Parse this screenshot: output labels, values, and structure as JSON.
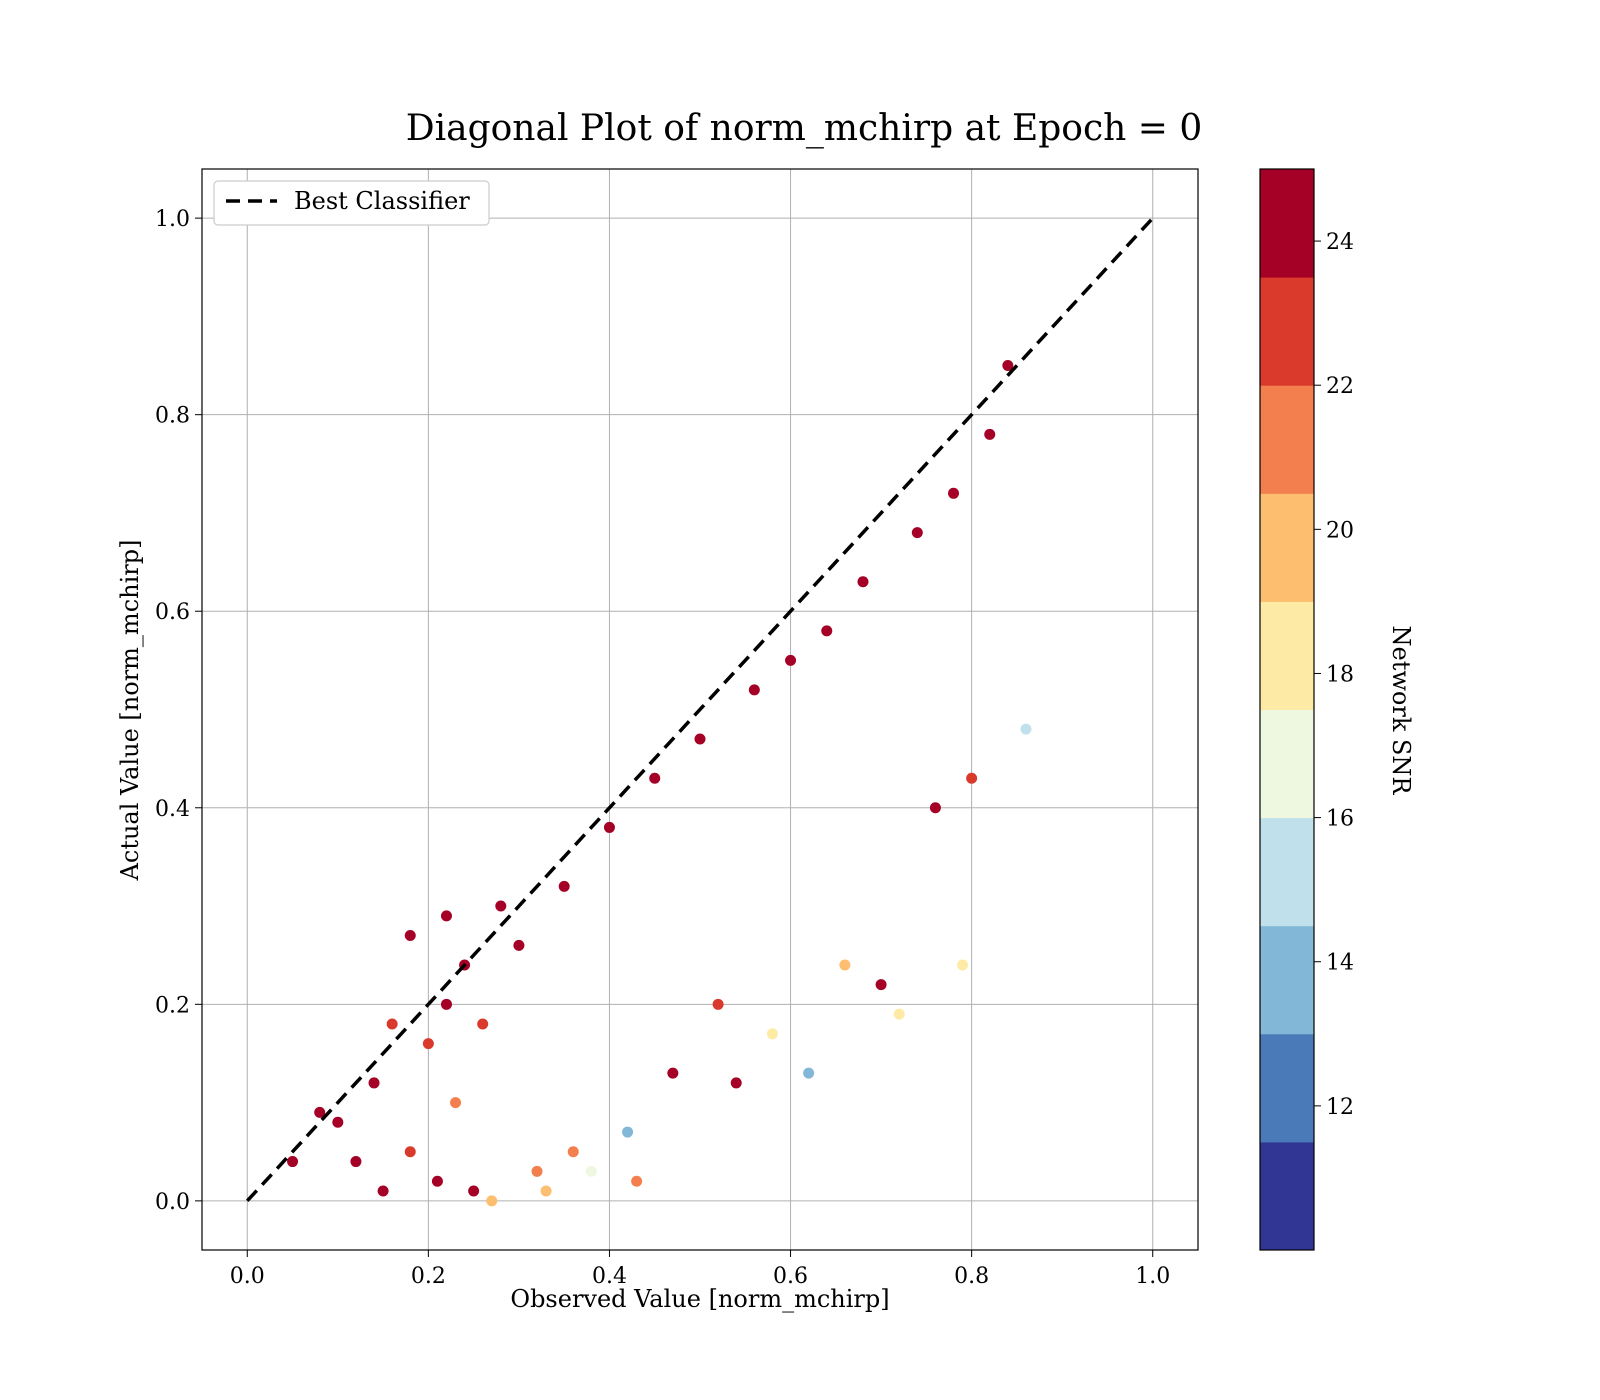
{
  "chart_data": {
    "type": "scatter",
    "title": "Diagonal Plot of norm_mchirp at Epoch = 0",
    "xlabel": "Observed Value [norm_mchirp]",
    "ylabel": "Actual Value [norm_mchirp]",
    "xlim": [
      -0.05,
      1.05
    ],
    "ylim": [
      -0.05,
      1.05
    ],
    "xticks": [
      "0.0",
      "0.2",
      "0.4",
      "0.6",
      "0.8",
      "1.0"
    ],
    "yticks": [
      "0.0",
      "0.2",
      "0.4",
      "0.6",
      "0.8",
      "1.0"
    ],
    "grid": true,
    "legend": {
      "position": "top-left",
      "entries": [
        {
          "label": "Best Classifier",
          "style": "dashed",
          "color": "#000000"
        }
      ]
    },
    "reference_line": {
      "name": "Best Classifier",
      "x": [
        0,
        1
      ],
      "y": [
        0,
        1
      ]
    },
    "colorbar": {
      "label": "Network SNR",
      "min": 10.0,
      "max": 25.0,
      "ticks": [
        "12",
        "14",
        "16",
        "18",
        "20",
        "22",
        "24"
      ],
      "colors": [
        "#313695",
        "#4575b4",
        "#74add1",
        "#abd9e9",
        "#e0f3f8",
        "#ffffbf",
        "#fee090",
        "#fdae61",
        "#f46d43",
        "#d73027",
        "#a50026"
      ],
      "band_colors": [
        "#313695",
        "#4a7ab7",
        "#83b7d7",
        "#c0e1ec",
        "#eef8e0",
        "#fdeba5",
        "#fdbe6f",
        "#f47f4e",
        "#da3a2c",
        "#a50026"
      ]
    },
    "series": [
      {
        "description_hint": "cluster",
        "points": [
          [
            0.05,
            0.04,
            24.5
          ],
          [
            0.08,
            0.09,
            24.8
          ],
          [
            0.1,
            0.08,
            24.5
          ],
          [
            0.12,
            0.04,
            24.9
          ],
          [
            0.14,
            0.12,
            24.6
          ],
          [
            0.15,
            0.01,
            24.8
          ],
          [
            0.16,
            0.18,
            23.2
          ],
          [
            0.18,
            0.05,
            22.8
          ],
          [
            0.18,
            0.27,
            24.6
          ],
          [
            0.2,
            0.16,
            23.0
          ],
          [
            0.21,
            0.02,
            24.3
          ],
          [
            0.22,
            0.2,
            24.9
          ],
          [
            0.22,
            0.29,
            24.7
          ],
          [
            0.23,
            0.1,
            21.5
          ],
          [
            0.24,
            0.24,
            24.8
          ],
          [
            0.25,
            0.01,
            24.0
          ],
          [
            0.26,
            0.18,
            22.4
          ],
          [
            0.27,
            0.0,
            19.8
          ],
          [
            0.28,
            0.3,
            24.6
          ],
          [
            0.3,
            0.26,
            24.2
          ],
          [
            0.32,
            0.03,
            21.6
          ],
          [
            0.33,
            0.01,
            20.1
          ],
          [
            0.35,
            0.32,
            24.1
          ],
          [
            0.36,
            0.05,
            20.8
          ],
          [
            0.38,
            0.03,
            16.2
          ],
          [
            0.4,
            0.38,
            24.8
          ],
          [
            0.42,
            0.07,
            13.5
          ],
          [
            0.43,
            0.02,
            20.5
          ],
          [
            0.45,
            0.43,
            24.5
          ],
          [
            0.47,
            0.13,
            24.9
          ],
          [
            0.5,
            0.47,
            24.2
          ],
          [
            0.52,
            0.2,
            22.0
          ],
          [
            0.54,
            0.12,
            24.0
          ],
          [
            0.56,
            0.52,
            24.3
          ],
          [
            0.58,
            0.17,
            18.3
          ],
          [
            0.6,
            0.55,
            24.6
          ],
          [
            0.62,
            0.13,
            14.0
          ],
          [
            0.64,
            0.58,
            24.2
          ],
          [
            0.66,
            0.24,
            19.5
          ],
          [
            0.68,
            0.63,
            24.7
          ],
          [
            0.7,
            0.22,
            24.5
          ],
          [
            0.72,
            0.19,
            18.5
          ],
          [
            0.74,
            0.68,
            24.1
          ],
          [
            0.76,
            0.4,
            24.7
          ],
          [
            0.78,
            0.72,
            24.4
          ],
          [
            0.79,
            0.24,
            17.5
          ],
          [
            0.8,
            0.43,
            22.5
          ],
          [
            0.82,
            0.78,
            24.9
          ],
          [
            0.84,
            0.85,
            24.7
          ],
          [
            0.86,
            0.48,
            15.5
          ]
        ]
      }
    ]
  }
}
